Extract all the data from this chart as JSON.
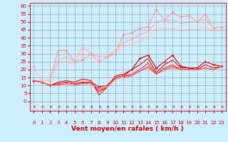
{
  "xlabel": "Vent moyen/en rafales ( km/h )",
  "xlabel_color": "#cc0000",
  "background_color": "#cceeff",
  "grid_color": "#999999",
  "x_ticks": [
    0,
    1,
    2,
    3,
    4,
    5,
    6,
    7,
    8,
    9,
    10,
    11,
    12,
    13,
    14,
    15,
    16,
    17,
    18,
    19,
    20,
    21,
    22,
    23
  ],
  "y_ticks": [
    0,
    5,
    10,
    15,
    20,
    25,
    30,
    35,
    40,
    45,
    50,
    55,
    60
  ],
  "ylim": [
    -6,
    62
  ],
  "xlim": [
    -0.5,
    23.5
  ],
  "lines": [
    {
      "x": [
        0,
        1,
        2,
        3,
        4,
        5,
        6,
        7,
        8,
        9,
        10,
        11,
        12,
        13,
        14,
        15,
        16,
        17,
        18,
        19,
        20,
        21,
        22,
        23
      ],
      "y": [
        22,
        13,
        13,
        32,
        32,
        25,
        26,
        30,
        25,
        28,
        30,
        42,
        43,
        46,
        47,
        58,
        51,
        56,
        53,
        54,
        50,
        55,
        46,
        47
      ],
      "color": "#ff9999",
      "lw": 0.8,
      "marker": "D",
      "ms": 1.8
    },
    {
      "x": [
        0,
        1,
        2,
        3,
        4,
        5,
        6,
        7,
        8,
        9,
        10,
        11,
        12,
        13,
        14,
        15,
        16,
        17,
        18,
        19,
        20,
        21,
        22,
        23
      ],
      "y": [
        22,
        13,
        13,
        26,
        28,
        25,
        34,
        30,
        28,
        28,
        32,
        37,
        39,
        42,
        44,
        50,
        51,
        51,
        49,
        50,
        50,
        52,
        46,
        47
      ],
      "color": "#ffbbbb",
      "lw": 1.2,
      "marker": null,
      "ms": 0
    },
    {
      "x": [
        0,
        1,
        2,
        3,
        4,
        5,
        6,
        7,
        8,
        9,
        10,
        11,
        12,
        13,
        14,
        15,
        16,
        17,
        18,
        19,
        20,
        21,
        22,
        23
      ],
      "y": [
        22,
        13,
        13,
        24,
        25,
        23,
        30,
        27,
        26,
        27,
        30,
        35,
        36,
        38,
        40,
        46,
        46,
        46,
        44,
        45,
        45,
        47,
        44,
        45
      ],
      "color": "#ffcccc",
      "lw": 1.2,
      "marker": null,
      "ms": 0
    },
    {
      "x": [
        0,
        1,
        2,
        3,
        4,
        5,
        6,
        7,
        8,
        9,
        10,
        11,
        12,
        13,
        14,
        15,
        16,
        17,
        18,
        19,
        20,
        21,
        22,
        23
      ],
      "y": [
        13,
        12,
        10,
        11,
        12,
        11,
        12,
        12,
        9,
        10,
        15,
        16,
        20,
        27,
        29,
        21,
        25,
        29,
        22,
        21,
        21,
        25,
        23,
        22
      ],
      "color": "#cc0000",
      "lw": 0.8,
      "marker": "D",
      "ms": 1.8
    },
    {
      "x": [
        0,
        1,
        2,
        3,
        4,
        5,
        6,
        7,
        8,
        9,
        10,
        11,
        12,
        13,
        14,
        15,
        16,
        17,
        18,
        19,
        20,
        21,
        22,
        23
      ],
      "y": [
        13,
        12,
        10,
        12,
        13,
        12,
        14,
        13,
        4,
        9,
        16,
        17,
        20,
        23,
        27,
        18,
        23,
        26,
        21,
        21,
        20,
        23,
        21,
        22
      ],
      "color": "#ee0000",
      "lw": 0.8,
      "marker": null,
      "ms": 0
    },
    {
      "x": [
        0,
        1,
        2,
        3,
        4,
        5,
        6,
        7,
        8,
        9,
        10,
        11,
        12,
        13,
        14,
        15,
        16,
        17,
        18,
        19,
        20,
        21,
        22,
        23
      ],
      "y": [
        13,
        12,
        10,
        11,
        12,
        11,
        12,
        12,
        6,
        9,
        15,
        16,
        17,
        20,
        24,
        17,
        21,
        23,
        20,
        20,
        20,
        21,
        20,
        22
      ],
      "color": "#ff2222",
      "lw": 0.8,
      "marker": null,
      "ms": 0
    },
    {
      "x": [
        0,
        1,
        2,
        3,
        4,
        5,
        6,
        7,
        8,
        9,
        10,
        11,
        12,
        13,
        14,
        15,
        16,
        17,
        18,
        19,
        20,
        21,
        22,
        23
      ],
      "y": [
        13,
        12,
        10,
        11,
        12,
        11,
        11,
        12,
        7,
        9,
        15,
        16,
        16,
        19,
        22,
        17,
        20,
        22,
        20,
        20,
        20,
        21,
        20,
        22
      ],
      "color": "#ff4444",
      "lw": 0.8,
      "marker": null,
      "ms": 0
    },
    {
      "x": [
        0,
        1,
        2,
        3,
        4,
        5,
        6,
        7,
        8,
        9,
        10,
        11,
        12,
        13,
        14,
        15,
        16,
        17,
        18,
        19,
        20,
        21,
        22,
        23
      ],
      "y": [
        13,
        12,
        10,
        10,
        11,
        10,
        11,
        11,
        8,
        9,
        14,
        15,
        16,
        19,
        21,
        17,
        20,
        21,
        20,
        20,
        20,
        21,
        20,
        22
      ],
      "color": "#ff6666",
      "lw": 0.8,
      "marker": null,
      "ms": 0
    }
  ],
  "tick_fontsize": 5,
  "label_fontsize": 6.5
}
